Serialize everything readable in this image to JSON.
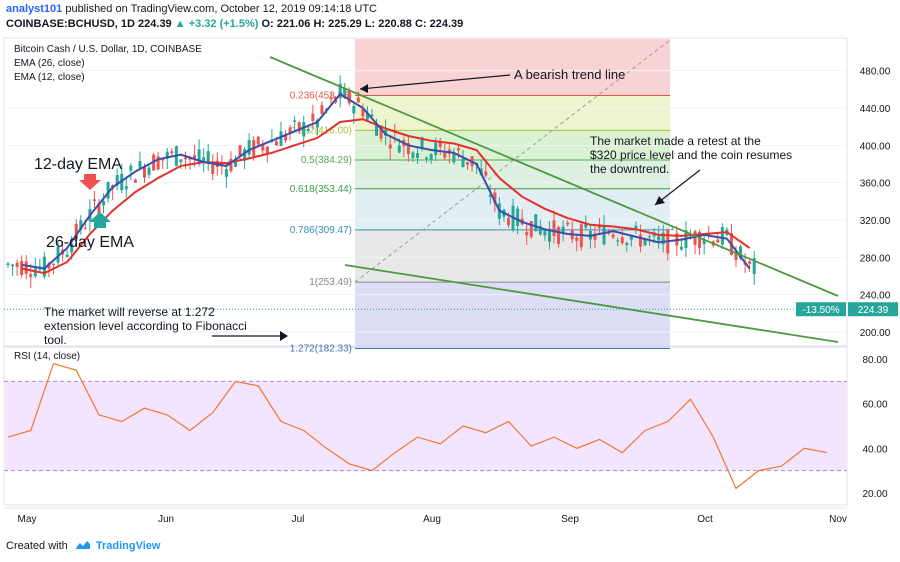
{
  "header": {
    "author": "analyst101",
    "published_text": "published on TradingView.com, October 12, 2019 09:14:18 UTC",
    "symbol_line": "COINBASE:BCHUSD, 1D",
    "price": "224.39",
    "change": "+3.32 (+1.5%)",
    "ohlc": "O: 221.06 H: 225.29 L: 220.88 C: 224.39"
  },
  "legend": {
    "title": "Bitcoin Cash / U.S. Dollar, 1D, COINBASE",
    "ema26": "EMA (26, close)",
    "ema12": "EMA (12, close)",
    "rsi": "RSI (14, close)"
  },
  "annotations": {
    "trend_line": "A bearish trend line",
    "retest_1": "The market made a retest at the",
    "retest_2": "$320 price level and the coin resumes",
    "retest_3": "the downtrend.",
    "reverse_1": "The market will reverse at 1.272",
    "reverse_2": "extension level according to Fibonacci",
    "reverse_3": "tool.",
    "ema12_label": "12-day EMA",
    "ema26_label": "26-day EMA"
  },
  "price_badge": {
    "pct": "-13.50%",
    "price": "224.39"
  },
  "footer": {
    "created_with": "Created with",
    "brand": "TradingView"
  },
  "colors": {
    "ema12": "#3b4ea8",
    "ema26": "#e5302a",
    "up": "#26a69a",
    "down": "#ef5350",
    "trendline": "#4c9a3f",
    "rsi_line": "#f4762e",
    "rsi_band": "#f3e5ff"
  },
  "chart_data": [
    {
      "type": "line",
      "title": "Bitcoin Cash / U.S. Dollar, 1D, COINBASE",
      "x_ticks": [
        "May",
        "Jun",
        "Jul",
        "Aug",
        "Sep",
        "Oct",
        "Nov"
      ],
      "y_ticks": [
        200,
        240,
        280,
        320,
        360,
        400,
        440,
        480
      ],
      "ylim": [
        185,
        515
      ],
      "fibonacci_levels": [
        {
          "label": "0.236(453.36)",
          "value": 453.36,
          "color": "#f7c8c8"
        },
        {
          "label": "0.382(416.00)",
          "value": 416.0,
          "color": "#eaf3c2"
        },
        {
          "label": "0.5(384.29)",
          "value": 384.29,
          "color": "#d2edc8"
        },
        {
          "label": "0.618(353.44)",
          "value": 353.44,
          "color": "#d6ecd7"
        },
        {
          "label": "0.786(309.47)",
          "value": 309.47,
          "color": "#d9eaf0"
        },
        {
          "label": "1(253.49)",
          "value": 253.49,
          "color": "#e2e2e2"
        },
        {
          "label": "1.272(182.33)",
          "value": 182.33,
          "color": "#d5d5f2"
        }
      ],
      "series": [
        {
          "name": "EMA (12, close)",
          "x": [
            3,
            8,
            13,
            18,
            23,
            28,
            33,
            38,
            43,
            48,
            53,
            58,
            63,
            68,
            73,
            78,
            83,
            88,
            93,
            98,
            103,
            108,
            113,
            118,
            123,
            128,
            133,
            138,
            143,
            148,
            153,
            158,
            163
          ],
          "values": [
            272,
            268,
            290,
            325,
            355,
            372,
            385,
            390,
            382,
            378,
            395,
            405,
            415,
            425,
            455,
            440,
            412,
            400,
            395,
            392,
            380,
            330,
            318,
            310,
            305,
            303,
            308,
            302,
            296,
            299,
            304,
            300,
            268
          ]
        },
        {
          "name": "EMA (26, close)",
          "x": [
            3,
            8,
            13,
            18,
            23,
            28,
            33,
            38,
            43,
            48,
            53,
            58,
            63,
            68,
            73,
            78,
            83,
            88,
            93,
            98,
            103,
            108,
            113,
            118,
            123,
            128,
            133,
            138,
            143,
            148,
            153,
            158,
            163
          ],
          "values": [
            268,
            263,
            275,
            305,
            330,
            350,
            365,
            378,
            382,
            381,
            386,
            392,
            400,
            408,
            425,
            428,
            418,
            410,
            405,
            402,
            395,
            365,
            345,
            332,
            322,
            315,
            313,
            310,
            304,
            303,
            305,
            307,
            290
          ]
        },
        {
          "name": "RSI (14, close)",
          "x": [
            0,
            5,
            10,
            15,
            20,
            25,
            30,
            35,
            40,
            45,
            50,
            55,
            60,
            65,
            70,
            75,
            80,
            85,
            90,
            95,
            100,
            105,
            110,
            115,
            120,
            125,
            130,
            135,
            140,
            145,
            150,
            155,
            160,
            165,
            170,
            175,
            180
          ],
          "values": [
            45,
            48,
            78,
            75,
            55,
            52,
            58,
            55,
            48,
            56,
            70,
            68,
            52,
            48,
            40,
            33,
            30,
            38,
            45,
            42,
            50,
            47,
            52,
            41,
            45,
            40,
            44,
            38,
            48,
            52,
            62,
            45,
            22,
            30,
            32,
            40,
            38
          ]
        }
      ]
    }
  ]
}
